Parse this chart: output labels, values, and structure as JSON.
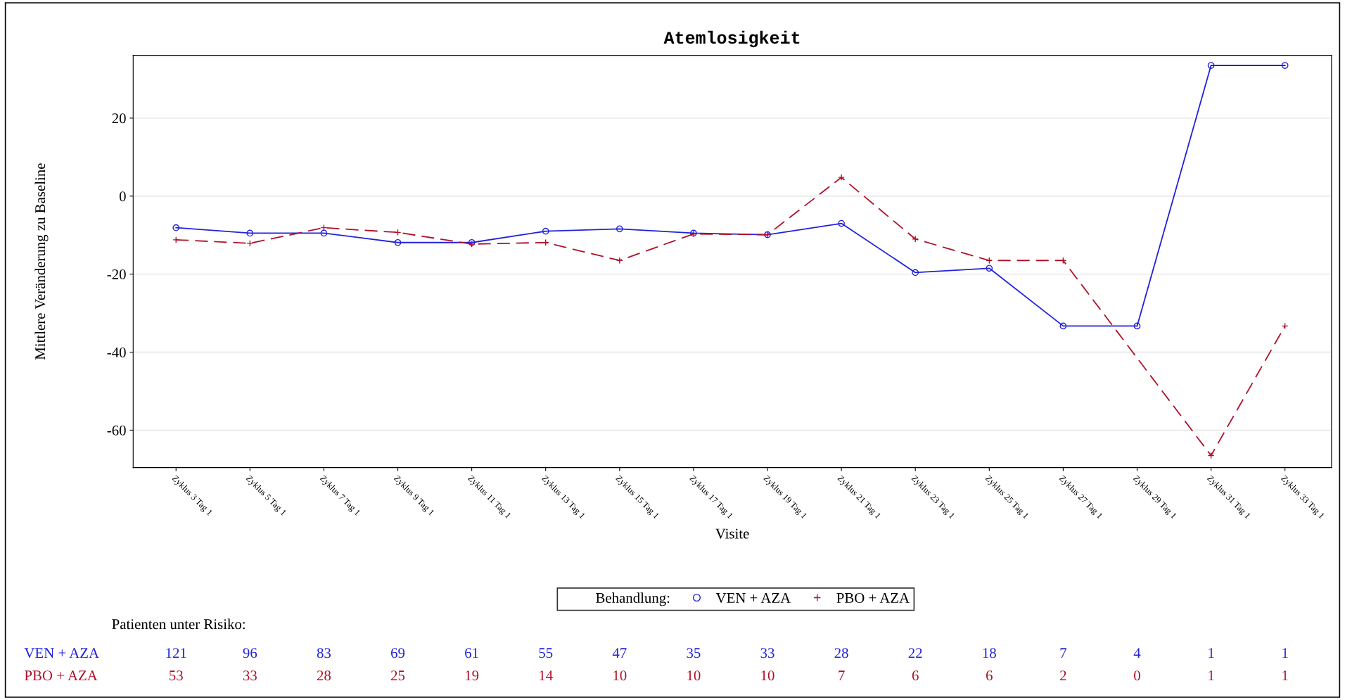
{
  "chart_data": {
    "type": "line",
    "title": "Atemlosigkeit",
    "xlabel": "Visite",
    "ylabel": "Mittlere Veränderung zu Baseline",
    "legend_title": "Behandlung:",
    "categories": [
      "Zyklus 3 Tag 1",
      "Zyklus 5 Tag 1",
      "Zyklus 7 Tag 1",
      "Zyklus 9 Tag 1",
      "Zyklus 11 Tag 1",
      "Zyklus 13 Tag 1",
      "Zyklus 15 Tag 1",
      "Zyklus 17 Tag 1",
      "Zyklus 19 Tag 1",
      "Zyklus 21 Tag 1",
      "Zyklus 23 Tag 1",
      "Zyklus 25 Tag 1",
      "Zyklus 27 Tag 1",
      "Zyklus 29 Tag 1",
      "Zyklus 31 Tag 1",
      "Zyklus 33 Tag 1"
    ],
    "series": [
      {
        "name": "VEN + AZA",
        "color": "#2222dd",
        "marker": "circle",
        "line_style": "solid",
        "values": [
          -8.1,
          -9.5,
          -9.5,
          -11.9,
          -11.9,
          -9.0,
          -8.4,
          -9.5,
          -9.9,
          -7.0,
          -19.6,
          -18.5,
          -33.3,
          -33.3,
          33.5,
          33.5
        ]
      },
      {
        "name": "PBO + AZA",
        "color": "#b0102a",
        "marker": "cross",
        "line_style": "dashed",
        "values": [
          -11.2,
          -12.1,
          -8.1,
          -9.3,
          -12.3,
          -11.9,
          -16.5,
          -9.7,
          -9.9,
          4.8,
          -11.0,
          -16.5,
          -16.5,
          null,
          -66.5,
          -33.3
        ]
      }
    ],
    "ylim": [
      -69.6,
      36.1
    ],
    "yticks": [
      -60,
      -40,
      -20,
      0,
      20
    ],
    "grid": "y",
    "legend": "bottom",
    "annotations": [
      "Patienten unter Risiko:",
      "VEN + AZA",
      "121",
      "96",
      "83",
      "69",
      "61",
      "55",
      "47",
      "35",
      "33",
      "28",
      "22",
      "18",
      "7",
      "4",
      "1",
      "1",
      "PBO + AZA",
      "53",
      "33",
      "28",
      "25",
      "19",
      "14",
      "10",
      "10",
      "10",
      "7",
      "6",
      "6",
      "2",
      "0",
      "1",
      "1"
    ]
  }
}
